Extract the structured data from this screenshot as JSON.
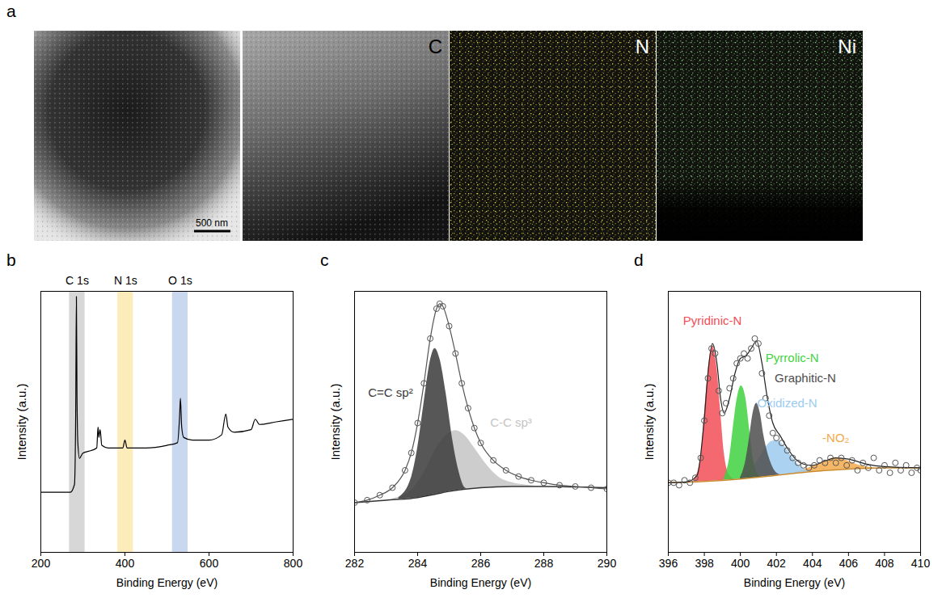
{
  "image_panel": {
    "panel_label": "a",
    "scale_bar": "500 nm",
    "maps": [
      {
        "label": "C"
      },
      {
        "label": "N",
        "color": "#e3d14a"
      },
      {
        "label": "Ni",
        "color": "#7fd07a"
      }
    ]
  },
  "chart_data": [
    {
      "type": "line",
      "panel_label": "b",
      "x_label": "Binding Energy (eV)",
      "y_label": "Intensity (a.u.)",
      "xlim": [
        200,
        800
      ],
      "xticks": [
        200,
        400,
        600,
        800
      ],
      "ylim": [
        0,
        100
      ],
      "tick_labels": "x",
      "color": "#000000",
      "x": [
        200,
        250,
        270,
        280,
        283,
        284.6,
        286,
        288,
        292,
        296,
        300,
        320,
        333,
        336,
        338,
        341,
        345,
        360,
        395,
        400,
        405,
        450,
        500,
        525,
        530,
        532,
        535,
        540,
        560,
        600,
        630,
        640,
        645,
        660,
        700,
        710,
        720,
        760,
        800
      ],
      "values": [
        23,
        23,
        23,
        26,
        55,
        98,
        60,
        42,
        36,
        37,
        38,
        39,
        40,
        48,
        44,
        47,
        41,
        40,
        40,
        43,
        40,
        40,
        41,
        42,
        52,
        59,
        48,
        44,
        43,
        43,
        45,
        53,
        48,
        46,
        47,
        51,
        49,
        50,
        51
      ],
      "bands": [
        {
          "label": "C 1s",
          "x1": 268,
          "x2": 305,
          "color": "#c9c9c9"
        },
        {
          "label": "N 1s",
          "x1": 383,
          "x2": 420,
          "color": "#fbe6a2"
        },
        {
          "label": "O 1s",
          "x1": 513,
          "x2": 550,
          "color": "#b7cbe8"
        }
      ]
    },
    {
      "type": "line",
      "panel_label": "c",
      "x_label": "Binding Energy (eV)",
      "y_label": "Intensity (a.u.)",
      "xlim": [
        282,
        290
      ],
      "xticks": [
        282,
        284,
        286,
        288,
        290
      ],
      "ylim": [
        0,
        105
      ],
      "tick_labels": "x",
      "color": "#555555",
      "marker": "circle",
      "line_style": "solid",
      "x": [
        282.0,
        282.4,
        282.8,
        283.2,
        283.6,
        283.8,
        284.0,
        284.2,
        284.4,
        284.6,
        284.7,
        284.8,
        285.0,
        285.2,
        285.4,
        285.6,
        285.8,
        286.0,
        286.4,
        286.8,
        287.2,
        287.6,
        288.0,
        288.5,
        289.0,
        289.5,
        290.0
      ],
      "values": [
        20,
        21,
        23,
        26,
        33,
        40,
        52,
        68,
        86,
        98,
        100,
        99,
        91,
        80,
        68,
        58,
        50,
        44,
        37,
        33,
        30.5,
        29,
        28,
        27,
        26.5,
        26,
        25.5
      ],
      "baseline": {
        "color": "#333333",
        "x": [
          282,
          283,
          284,
          284.6,
          285,
          286,
          287,
          288,
          290
        ],
        "values": [
          20,
          21,
          22,
          23.5,
          24.5,
          26,
          26.5,
          26.5,
          26
        ]
      },
      "components": [
        {
          "name": "C-C sp³",
          "color": "#c4c4c4",
          "label_x": 286.3,
          "label_y": 52,
          "x": [
            283.2,
            283.8,
            284.2,
            284.6,
            285.0,
            285.2,
            285.5,
            285.8,
            286.2,
            286.6,
            287.0,
            287.5,
            288.0
          ],
          "values": [
            21.5,
            25,
            32,
            42,
            48,
            49,
            47,
            42,
            35,
            30,
            28,
            27,
            26.5
          ]
        },
        {
          "name": "C=C sp²",
          "color": "#3a3a3a",
          "label_x": 283.85,
          "label_y": 64,
          "x": [
            283.4,
            283.8,
            284.0,
            284.2,
            284.4,
            284.55,
            284.7,
            284.9,
            285.1,
            285.3,
            285.5,
            285.8
          ],
          "values": [
            22,
            30,
            42,
            60,
            77,
            82,
            78,
            64,
            46,
            33,
            26,
            24.5
          ]
        }
      ]
    },
    {
      "type": "line",
      "panel_label": "d",
      "x_label": "Binding Energy (eV)",
      "y_label": "Intensity (a.u.)",
      "xlim": [
        396,
        410
      ],
      "xticks": [
        396,
        398,
        400,
        402,
        404,
        406,
        408,
        410
      ],
      "ylim": [
        0,
        105
      ],
      "tick_labels": "x",
      "color": "#555555",
      "marker": "circle",
      "x": [
        396,
        396.3,
        396.6,
        396.9,
        397.2,
        397.5,
        397.8,
        398.0,
        398.2,
        398.4,
        398.6,
        398.8,
        399.0,
        399.2,
        399.4,
        399.6,
        399.8,
        400.0,
        400.2,
        400.4,
        400.6,
        400.8,
        401.0,
        401.2,
        401.4,
        401.6,
        401.8,
        402.0,
        402.3,
        402.6,
        402.9,
        403.2,
        403.5,
        403.8,
        404.1,
        404.4,
        404.7,
        405.0,
        405.3,
        405.6,
        405.9,
        406.2,
        406.5,
        406.8,
        407.1,
        407.4,
        407.7,
        408.0,
        408.3,
        408.6,
        408.9,
        409.2,
        409.5,
        409.8,
        410.0
      ],
      "values": [
        28,
        28,
        27,
        29,
        28,
        30,
        38,
        53,
        70,
        82,
        80,
        65,
        56,
        60,
        66,
        70,
        76,
        78,
        80,
        78,
        82,
        86,
        84,
        72,
        62,
        55,
        48,
        46,
        44,
        41,
        38,
        36,
        35,
        34,
        35,
        37,
        36,
        38,
        36,
        38,
        35,
        37,
        33,
        36,
        34,
        38,
        33,
        35,
        32,
        36,
        33,
        35,
        32,
        34,
        33
      ],
      "fit": {
        "color": "#222222",
        "x": [
          396,
          397,
          397.6,
          398.0,
          398.2,
          398.45,
          398.7,
          398.9,
          399.1,
          399.4,
          399.7,
          400.0,
          400.3,
          400.6,
          400.9,
          401.2,
          401.5,
          401.8,
          402.2,
          402.6,
          403.0,
          403.5,
          404,
          404.6,
          405.3,
          406,
          407,
          408,
          410
        ],
        "values": [
          28,
          28.3,
          31,
          54,
          72,
          84,
          76,
          62,
          56,
          62,
          72,
          78,
          79,
          82,
          85,
          76,
          62,
          52,
          47,
          42,
          38,
          35.5,
          35,
          36.5,
          38,
          37.5,
          35.5,
          34.5,
          34
        ]
      },
      "baseline": {
        "color": "#c98a2e",
        "x": [
          396,
          398,
          400,
          402,
          404,
          406,
          408,
          410
        ],
        "values": [
          28,
          28.5,
          29.5,
          31,
          32.5,
          33.5,
          34,
          34
        ]
      },
      "components": [
        {
          "name": "-NO₂",
          "color": "#f3a94a",
          "label_x": 405.3,
          "label_y": 46,
          "x": [
            403,
            404,
            404.8,
            405.3,
            405.9,
            406.6,
            407.5,
            408
          ],
          "values": [
            32,
            34.5,
            37,
            38,
            37,
            35,
            34,
            34
          ]
        },
        {
          "name": "Oxidized-N",
          "color": "#9ccbef",
          "label_x": 402.6,
          "label_y": 60,
          "x": [
            400.2,
            400.8,
            401.3,
            401.7,
            402.0,
            402.4,
            402.9,
            403.4,
            404.0
          ],
          "values": [
            30,
            35,
            41,
            44.5,
            45,
            43,
            38,
            34,
            32.5
          ]
        },
        {
          "name": "Pyridinic-N",
          "color": "#f24d57",
          "label_x": 398.45,
          "label_y": 93,
          "x": [
            397.4,
            397.8,
            398.0,
            398.2,
            398.45,
            398.7,
            398.9,
            399.1,
            399.4,
            399.8
          ],
          "values": [
            28.5,
            38,
            55,
            72,
            83,
            74,
            57,
            40,
            31,
            29
          ]
        },
        {
          "name": "Pyrrolic-N",
          "color": "#3fd23f",
          "label_x": 401.4,
          "label_y": 78,
          "x": [
            399.1,
            399.4,
            399.6,
            399.8,
            400.05,
            400.3,
            400.5,
            400.7,
            401.0,
            401.3
          ],
          "values": [
            30,
            38,
            50,
            61,
            67,
            62,
            50,
            38,
            31,
            30
          ]
        },
        {
          "name": "Graphitic-N",
          "color": "#4d4d4d",
          "label_x": 401.9,
          "label_y": 70,
          "x": [
            400.0,
            400.3,
            400.5,
            400.7,
            400.9,
            401.1,
            401.3,
            401.6,
            402.0,
            402.3
          ],
          "values": [
            30,
            37,
            46,
            56,
            60,
            56,
            47,
            38,
            32,
            31
          ]
        }
      ]
    }
  ]
}
